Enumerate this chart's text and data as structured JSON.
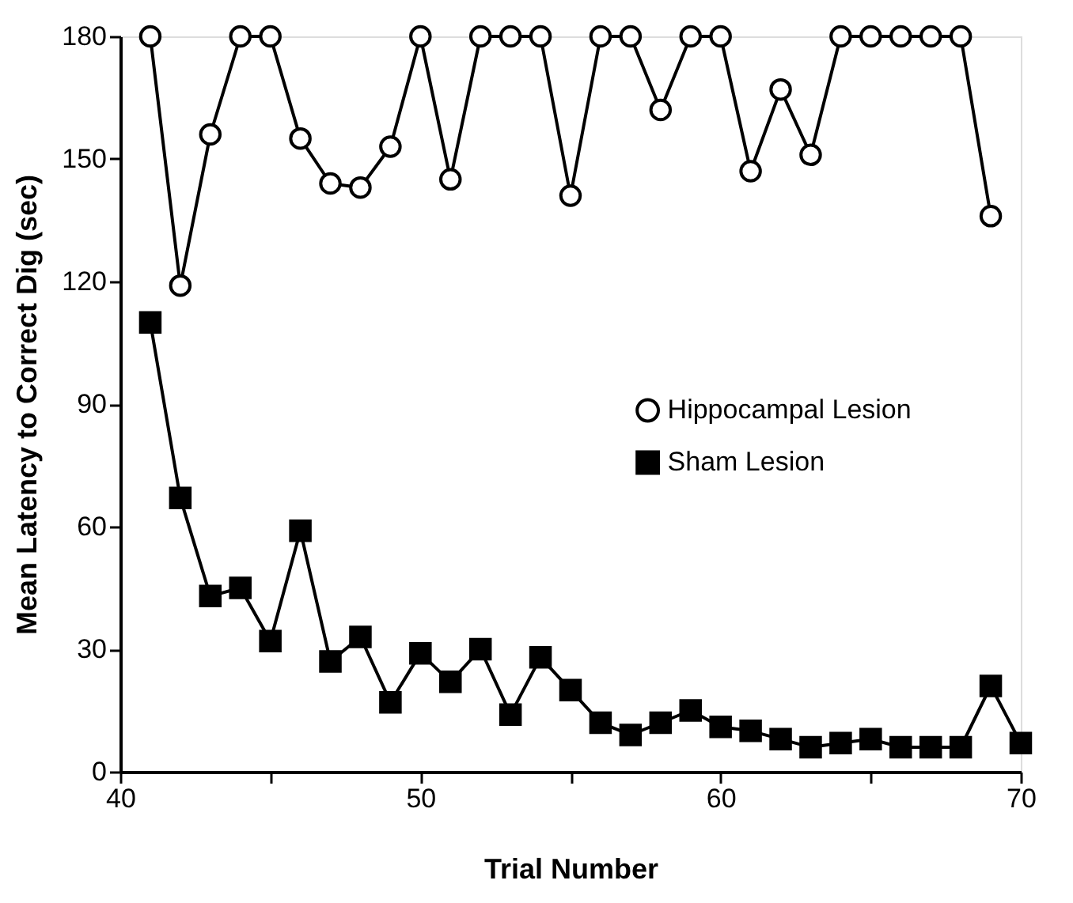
{
  "chart_data": {
    "type": "line",
    "xlabel": "Trial Number",
    "ylabel": "Mean Latency to Correct Dig (sec)",
    "xlim": [
      40,
      70
    ],
    "xticks": [
      40,
      {
        "value": 45,
        "label": null
      },
      50,
      {
        "value": 55,
        "label": null
      },
      60,
      {
        "value": 65,
        "label": null
      },
      70
    ],
    "ylim": [
      0,
      180
    ],
    "yticks": [
      0,
      30,
      60,
      90,
      120,
      150,
      180
    ],
    "grid": false,
    "legend": "right",
    "series": [
      {
        "name": "Hippocampal Lesion",
        "color": "#000000",
        "marker": "circle",
        "x": [
          41,
          42,
          43,
          44,
          45,
          46,
          47,
          48,
          49,
          50,
          51,
          52,
          53,
          54,
          55,
          56,
          57,
          58,
          59,
          60,
          61,
          62,
          63,
          64,
          65,
          66,
          67,
          68,
          69
        ],
        "values": [
          180,
          119,
          156,
          180,
          180,
          155,
          144,
          143,
          153,
          180,
          145,
          180,
          180,
          180,
          141,
          180,
          180,
          162,
          180,
          180,
          147,
          167,
          151,
          180,
          180,
          180,
          180,
          180,
          136
        ]
      },
      {
        "name": "Sham Lesion",
        "color": "#000000",
        "marker": "square",
        "x": [
          41,
          42,
          43,
          44,
          45,
          46,
          47,
          48,
          49,
          50,
          51,
          52,
          53,
          54,
          55,
          56,
          57,
          58,
          59,
          60,
          61,
          62,
          63,
          64,
          65,
          66,
          67,
          68,
          69,
          70
        ],
        "values": [
          110,
          67,
          43,
          45,
          32,
          59,
          27,
          33,
          17,
          29,
          22,
          30,
          14,
          28,
          20,
          12,
          9,
          12,
          15,
          11,
          10,
          8,
          6,
          7,
          8,
          6,
          6,
          6,
          21,
          7
        ]
      }
    ]
  }
}
